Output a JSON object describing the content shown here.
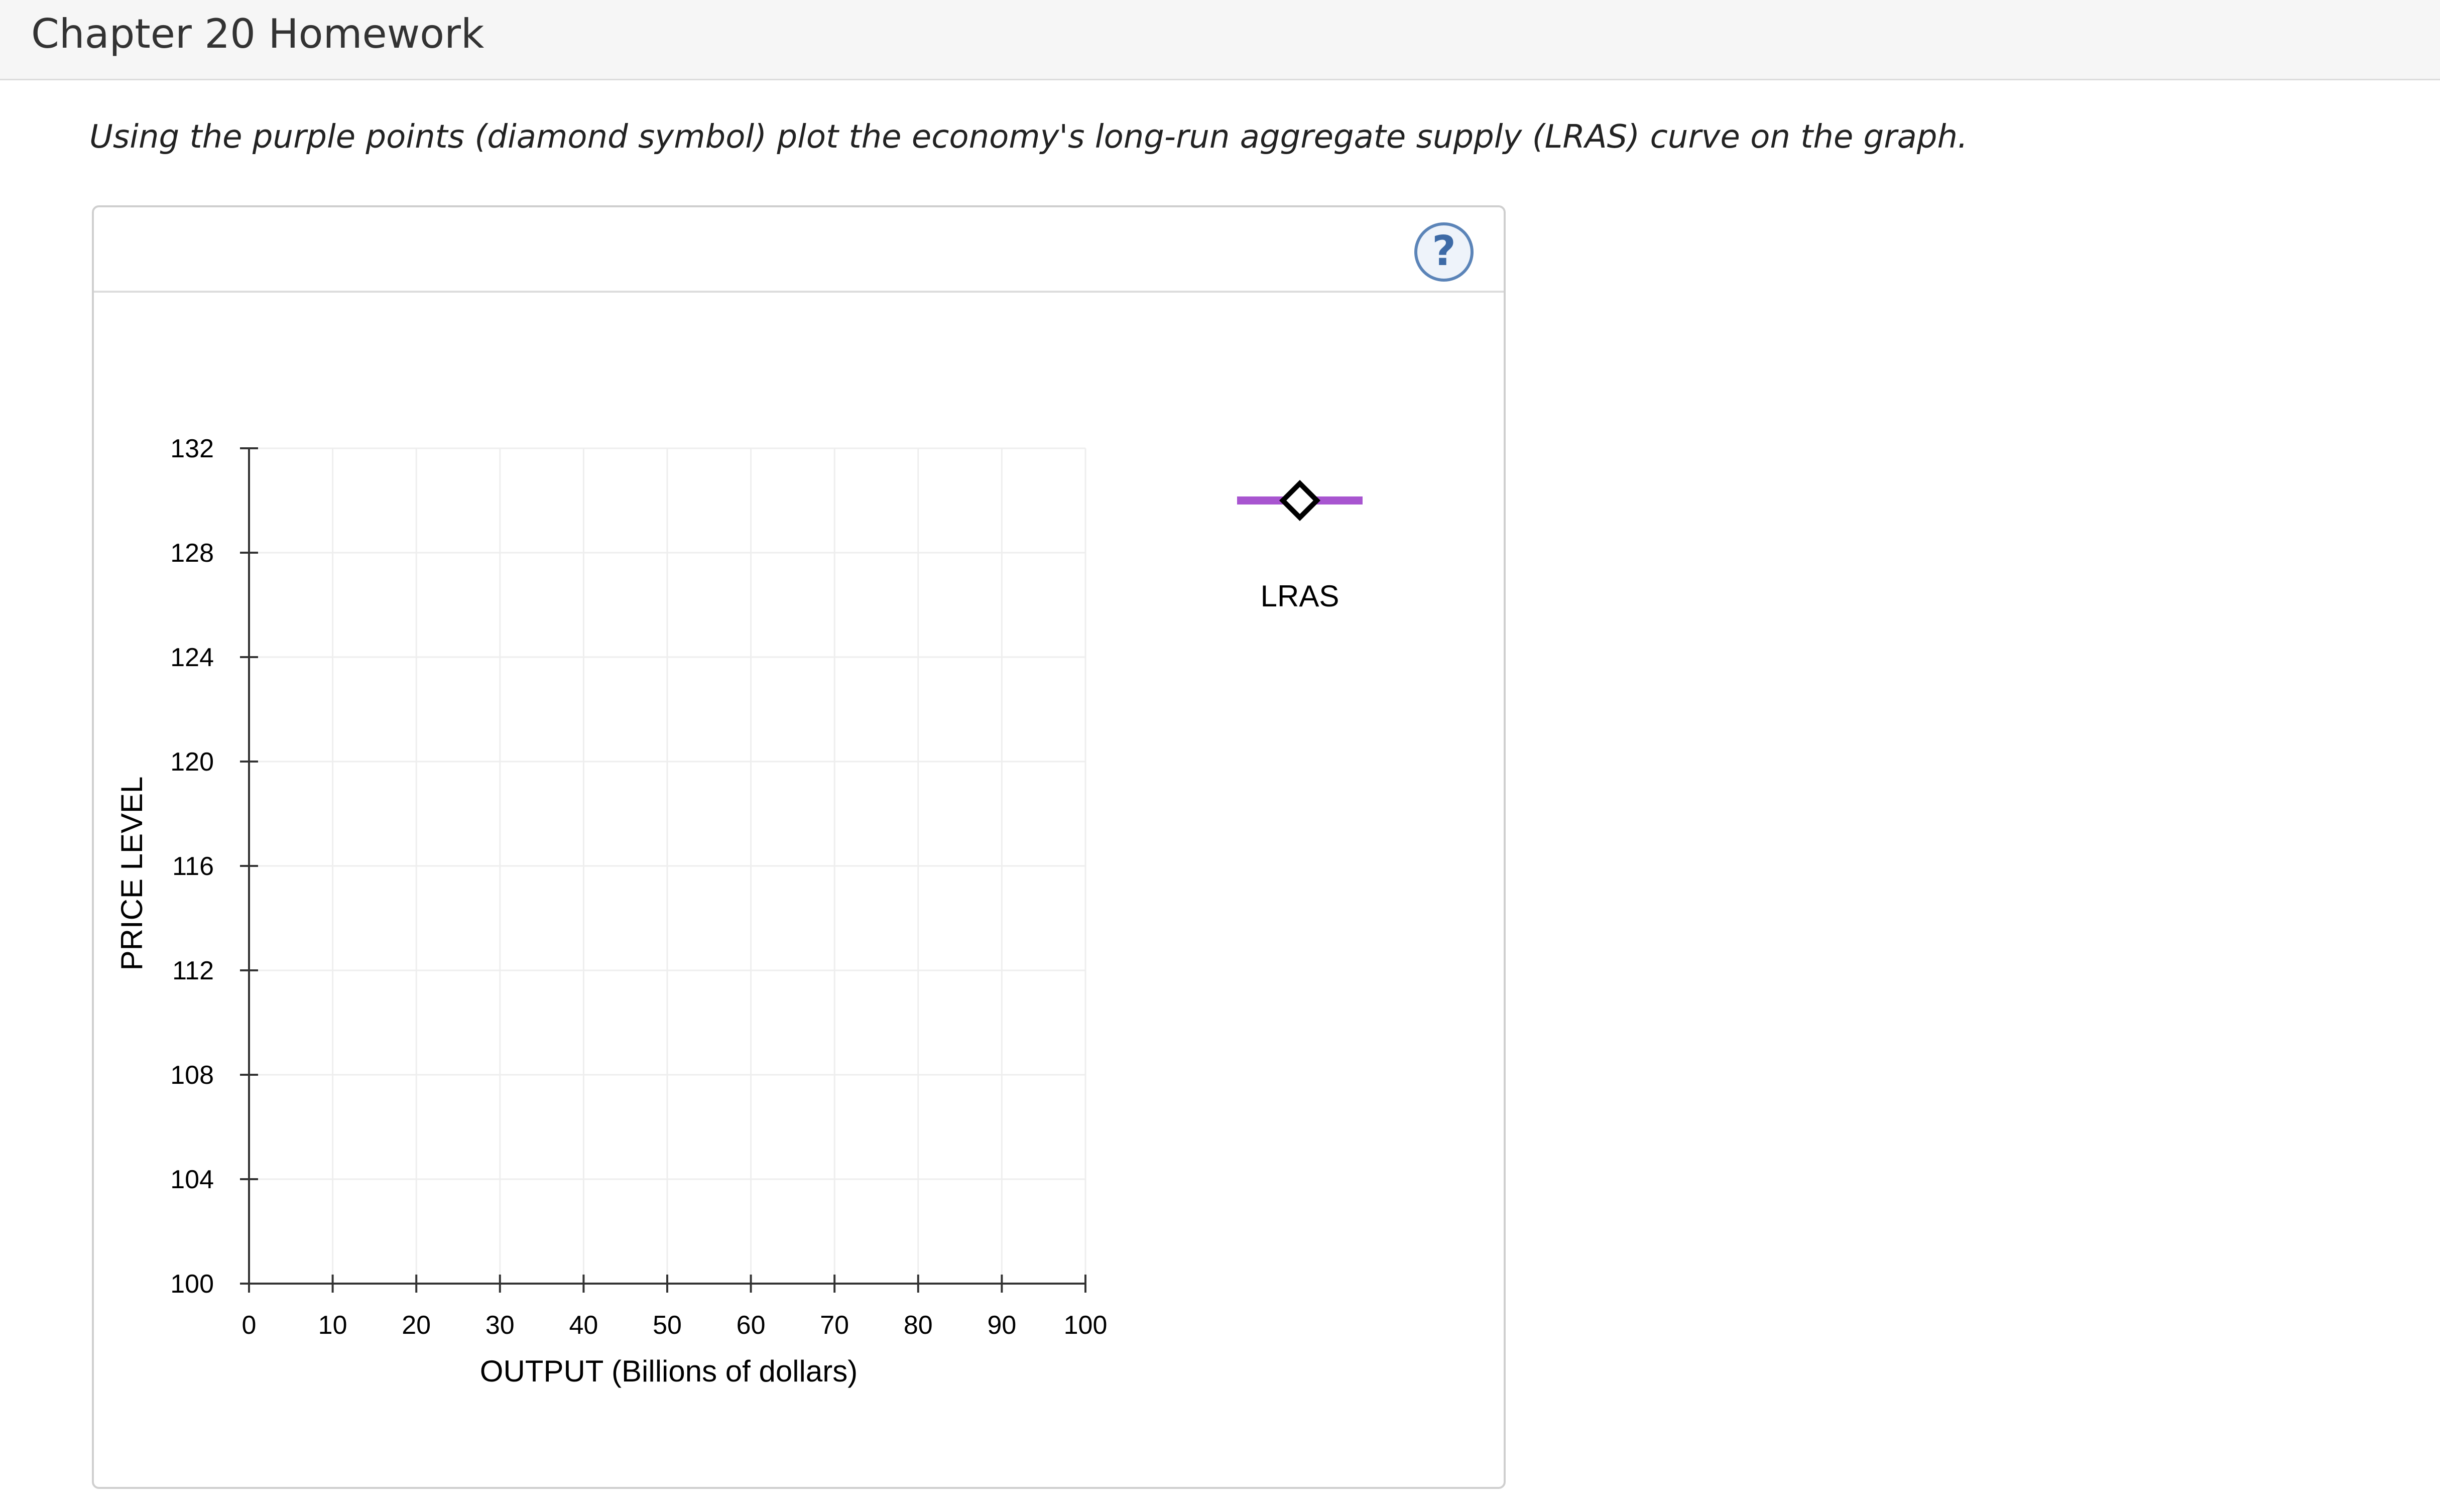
{
  "header": {
    "title": "Chapter 20 Homework"
  },
  "instructions": "Using the purple points (diamond symbol) plot the economy's long-run aggregate supply (LRAS) curve on the graph.",
  "help": {
    "label": "?",
    "icon": "question-mark-icon"
  },
  "colors": {
    "lras_line": "#a855d0",
    "grid": "#eeeeee",
    "axis": "#333333",
    "help_border": "#5b84b8"
  },
  "chart_data": {
    "type": "scatter",
    "xlabel": "OUTPUT (Billions of dollars)",
    "ylabel": "PRICE LEVEL",
    "xlim": [
      0,
      100
    ],
    "ylim": [
      100,
      132
    ],
    "x_ticks": [
      0,
      10,
      20,
      30,
      40,
      50,
      60,
      70,
      80,
      90,
      100
    ],
    "y_ticks": [
      100,
      104,
      108,
      112,
      116,
      120,
      124,
      128,
      132
    ],
    "grid": true,
    "series": [],
    "legend": [
      {
        "name": "LRAS",
        "marker": "diamond",
        "color": "#a855d0"
      }
    ],
    "legend_position": "right"
  }
}
